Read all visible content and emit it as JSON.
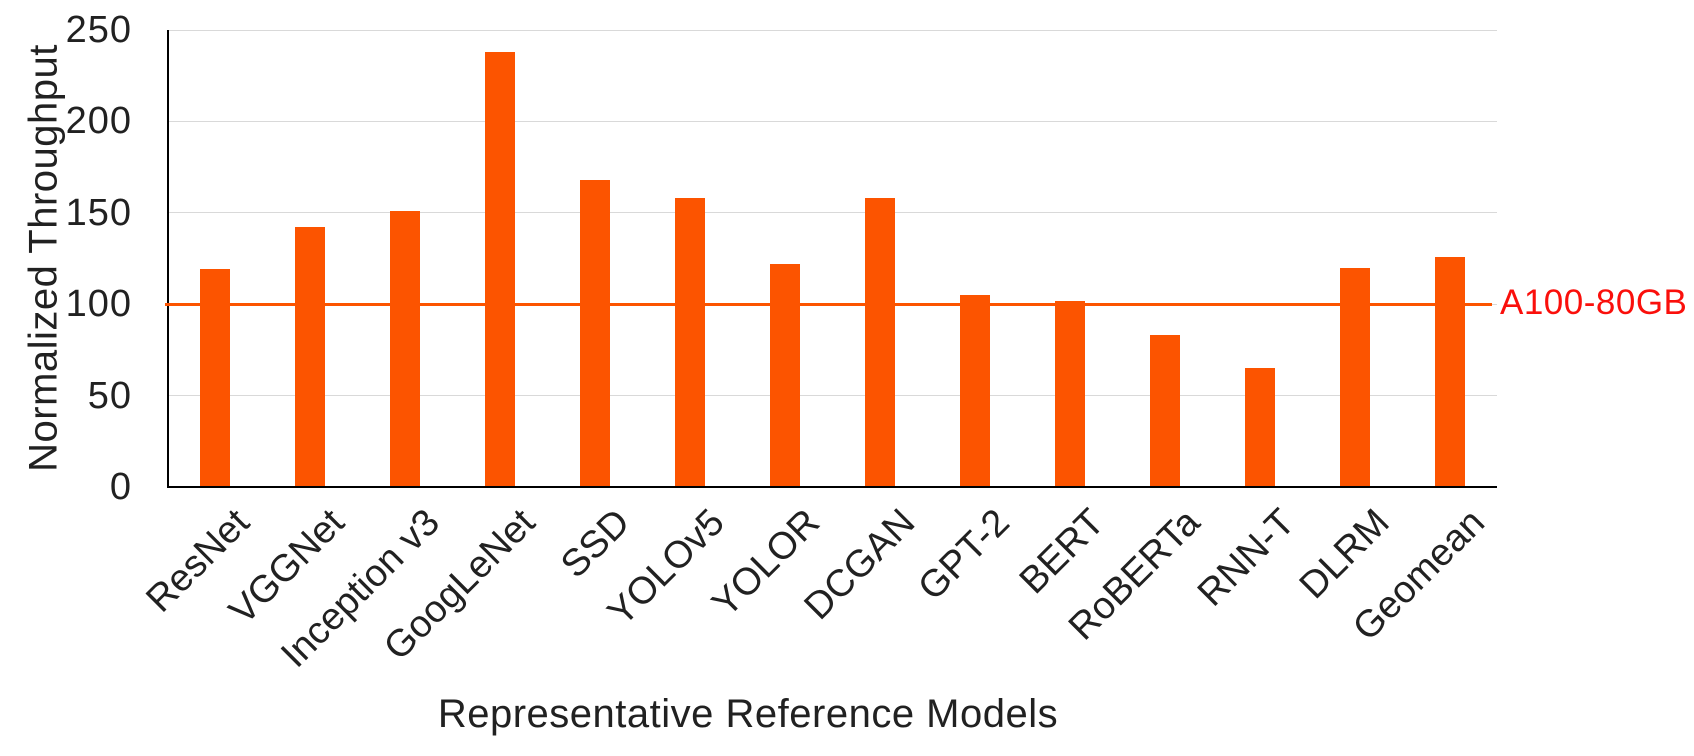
{
  "chart_data": {
    "type": "bar",
    "title": "",
    "xlabel": "Representative Reference Models",
    "ylabel": "Normalized Throughput",
    "categories": [
      "ResNet",
      "VGGNet",
      "Inception v3",
      "GoogLeNet",
      "SSD",
      "YOLOv5",
      "YOLOR",
      "DCGAN",
      "GPT-2",
      "BERT",
      "RoBERTa",
      "RNN-T",
      "DLRM",
      "Geomean"
    ],
    "values": [
      119,
      142,
      151,
      238,
      168,
      158,
      122,
      158,
      105,
      102,
      83,
      65,
      120,
      126
    ],
    "ylim": [
      0,
      250
    ],
    "yticks": [
      0,
      50,
      100,
      150,
      200,
      250
    ],
    "grid": true,
    "legend_position": "none",
    "bar_color": "#fc5400",
    "reference_line": {
      "value": 100,
      "label": "A100-80GB",
      "line_color": "#fc5400",
      "label_color": "#fa0f0b"
    }
  },
  "colors": {
    "gridline": "#d9d9d9",
    "axis": "#000000",
    "text": "#212121"
  }
}
